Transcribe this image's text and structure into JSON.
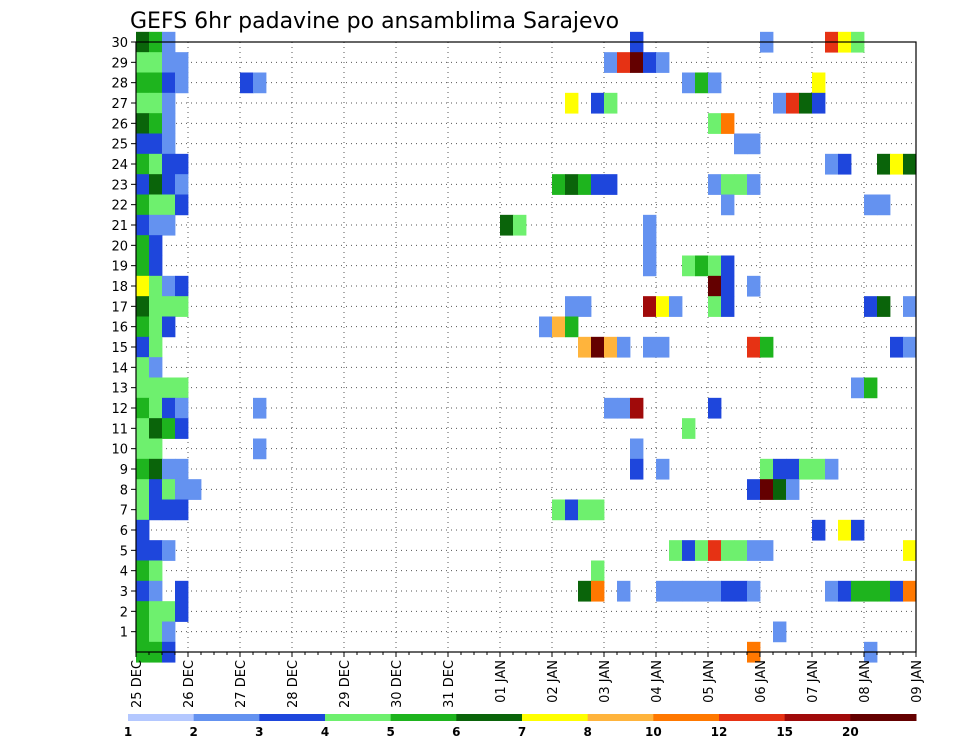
{
  "chart_data": {
    "type": "heatmap",
    "title": "GEFS 6hr padavine po ansamblima Sarajevo",
    "xlabel": "",
    "ylabel": "",
    "x_ticks": [
      "25 DEC",
      "26 DEC",
      "27 DEC",
      "28 DEC",
      "29 DEC",
      "30 DEC",
      "31 DEC",
      "01 JAN",
      "02 JAN",
      "03 JAN",
      "04 JAN",
      "05 JAN",
      "06 JAN",
      "07 JAN",
      "08 JAN",
      "09 JAN"
    ],
    "x_range": [
      0,
      60
    ],
    "x_unit": "6-hour steps from 25 DEC",
    "y_ticks": [
      1,
      2,
      3,
      4,
      5,
      6,
      7,
      8,
      9,
      10,
      11,
      12,
      13,
      14,
      15,
      16,
      17,
      18,
      19,
      20,
      21,
      22,
      23,
      24,
      25,
      26,
      27,
      28,
      29,
      30
    ],
    "y_range": [
      0,
      30
    ],
    "grid": true,
    "colorbar": {
      "ticks": [
        "1",
        "2",
        "3",
        "4",
        "5",
        "6",
        "7",
        "8",
        "10",
        "12",
        "15",
        "20"
      ],
      "colors": [
        "#b4c8ff",
        "#6492f0",
        "#1e46dc",
        "#6ef06e",
        "#1eb41e",
        "#0a640a",
        "#ffff00",
        "#ffb43c",
        "#ff7800",
        "#e63214",
        "#a00a0a",
        "#640000"
      ]
    },
    "cells": [
      [
        0,
        30,
        5
      ],
      [
        1,
        30,
        4
      ],
      [
        2,
        30,
        1
      ],
      [
        38,
        30,
        2
      ],
      [
        48,
        30,
        1
      ],
      [
        53,
        30,
        9
      ],
      [
        54,
        30,
        6
      ],
      [
        55,
        30,
        3
      ],
      [
        0,
        29,
        3
      ],
      [
        1,
        29,
        3
      ],
      [
        2,
        29,
        1
      ],
      [
        3,
        29,
        1
      ],
      [
        36,
        29,
        1
      ],
      [
        37,
        29,
        9
      ],
      [
        38,
        29,
        11
      ],
      [
        39,
        29,
        2
      ],
      [
        40,
        29,
        1
      ],
      [
        0,
        28,
        4
      ],
      [
        1,
        28,
        4
      ],
      [
        2,
        28,
        2
      ],
      [
        3,
        28,
        1
      ],
      [
        8,
        28,
        2
      ],
      [
        9,
        28,
        1
      ],
      [
        42,
        28,
        1
      ],
      [
        43,
        28,
        4
      ],
      [
        44,
        28,
        1
      ],
      [
        52,
        28,
        6
      ],
      [
        0,
        27,
        3
      ],
      [
        1,
        27,
        3
      ],
      [
        2,
        27,
        1
      ],
      [
        33,
        27,
        6
      ],
      [
        35,
        27,
        2
      ],
      [
        36,
        27,
        3
      ],
      [
        49,
        27,
        1
      ],
      [
        50,
        27,
        9
      ],
      [
        51,
        27,
        5
      ],
      [
        52,
        27,
        2
      ],
      [
        0,
        26,
        5
      ],
      [
        1,
        26,
        4
      ],
      [
        2,
        26,
        1
      ],
      [
        44,
        26,
        3
      ],
      [
        45,
        26,
        8
      ],
      [
        0,
        25,
        2
      ],
      [
        1,
        25,
        2
      ],
      [
        2,
        25,
        1
      ],
      [
        46,
        25,
        1
      ],
      [
        47,
        25,
        1
      ],
      [
        0,
        24,
        4
      ],
      [
        1,
        24,
        3
      ],
      [
        2,
        24,
        2
      ],
      [
        3,
        24,
        2
      ],
      [
        53,
        24,
        1
      ],
      [
        54,
        24,
        2
      ],
      [
        57,
        24,
        5
      ],
      [
        58,
        24,
        6
      ],
      [
        59,
        24,
        5
      ],
      [
        0,
        23,
        2
      ],
      [
        1,
        23,
        5
      ],
      [
        2,
        23,
        2
      ],
      [
        3,
        23,
        1
      ],
      [
        32,
        23,
        4
      ],
      [
        33,
        23,
        5
      ],
      [
        34,
        23,
        4
      ],
      [
        35,
        23,
        2
      ],
      [
        36,
        23,
        2
      ],
      [
        44,
        23,
        1
      ],
      [
        45,
        23,
        3
      ],
      [
        46,
        23,
        3
      ],
      [
        47,
        23,
        1
      ],
      [
        0,
        22,
        4
      ],
      [
        1,
        22,
        3
      ],
      [
        2,
        22,
        3
      ],
      [
        3,
        22,
        2
      ],
      [
        45,
        22,
        1
      ],
      [
        56,
        22,
        1
      ],
      [
        57,
        22,
        1
      ],
      [
        0,
        21,
        2
      ],
      [
        1,
        21,
        1
      ],
      [
        2,
        21,
        1
      ],
      [
        28,
        21,
        5
      ],
      [
        29,
        21,
        3
      ],
      [
        39,
        21,
        1
      ],
      [
        0,
        20,
        4
      ],
      [
        1,
        20,
        2
      ],
      [
        39,
        20,
        1
      ],
      [
        0,
        19,
        4
      ],
      [
        1,
        19,
        2
      ],
      [
        39,
        19,
        1
      ],
      [
        42,
        19,
        3
      ],
      [
        43,
        19,
        4
      ],
      [
        44,
        19,
        3
      ],
      [
        45,
        19,
        2
      ],
      [
        0,
        18,
        6
      ],
      [
        1,
        18,
        3
      ],
      [
        2,
        18,
        1
      ],
      [
        3,
        18,
        2
      ],
      [
        44,
        18,
        11
      ],
      [
        45,
        18,
        2
      ],
      [
        47,
        18,
        1
      ],
      [
        0,
        17,
        5
      ],
      [
        1,
        17,
        3
      ],
      [
        2,
        17,
        3
      ],
      [
        3,
        17,
        3
      ],
      [
        33,
        17,
        1
      ],
      [
        34,
        17,
        1
      ],
      [
        39,
        17,
        10
      ],
      [
        40,
        17,
        6
      ],
      [
        41,
        17,
        1
      ],
      [
        44,
        17,
        3
      ],
      [
        45,
        17,
        2
      ],
      [
        56,
        17,
        2
      ],
      [
        57,
        17,
        5
      ],
      [
        59,
        17,
        1
      ],
      [
        0,
        16,
        4
      ],
      [
        1,
        16,
        3
      ],
      [
        2,
        16,
        2
      ],
      [
        31,
        16,
        1
      ],
      [
        32,
        16,
        7
      ],
      [
        33,
        16,
        4
      ],
      [
        0,
        15,
        2
      ],
      [
        1,
        15,
        3
      ],
      [
        34,
        15,
        7
      ],
      [
        35,
        15,
        11
      ],
      [
        36,
        15,
        7
      ],
      [
        37,
        15,
        1
      ],
      [
        39,
        15,
        1
      ],
      [
        40,
        15,
        1
      ],
      [
        47,
        15,
        9
      ],
      [
        48,
        15,
        4
      ],
      [
        58,
        15,
        2
      ],
      [
        59,
        15,
        1
      ],
      [
        0,
        14,
        3
      ],
      [
        1,
        14,
        1
      ],
      [
        0,
        13,
        3
      ],
      [
        1,
        13,
        3
      ],
      [
        2,
        13,
        3
      ],
      [
        3,
        13,
        3
      ],
      [
        55,
        13,
        1
      ],
      [
        56,
        13,
        4
      ],
      [
        0,
        12,
        4
      ],
      [
        1,
        12,
        3
      ],
      [
        2,
        12,
        2
      ],
      [
        3,
        12,
        1
      ],
      [
        9,
        12,
        1
      ],
      [
        36,
        12,
        1
      ],
      [
        37,
        12,
        1
      ],
      [
        38,
        12,
        10
      ],
      [
        44,
        12,
        2
      ],
      [
        0,
        11,
        3
      ],
      [
        1,
        11,
        5
      ],
      [
        2,
        11,
        4
      ],
      [
        3,
        11,
        2
      ],
      [
        42,
        11,
        3
      ],
      [
        0,
        10,
        3
      ],
      [
        1,
        10,
        3
      ],
      [
        9,
        10,
        1
      ],
      [
        38,
        10,
        1
      ],
      [
        0,
        9,
        4
      ],
      [
        1,
        9,
        5
      ],
      [
        2,
        9,
        1
      ],
      [
        3,
        9,
        1
      ],
      [
        38,
        9,
        2
      ],
      [
        40,
        9,
        1
      ],
      [
        48,
        9,
        3
      ],
      [
        49,
        9,
        2
      ],
      [
        50,
        9,
        2
      ],
      [
        51,
        9,
        3
      ],
      [
        52,
        9,
        3
      ],
      [
        53,
        9,
        1
      ],
      [
        0,
        8,
        3
      ],
      [
        1,
        8,
        2
      ],
      [
        2,
        8,
        3
      ],
      [
        3,
        8,
        1
      ],
      [
        4,
        8,
        1
      ],
      [
        47,
        8,
        2
      ],
      [
        48,
        8,
        11
      ],
      [
        49,
        8,
        5
      ],
      [
        50,
        8,
        1
      ],
      [
        0,
        7,
        3
      ],
      [
        1,
        7,
        2
      ],
      [
        2,
        7,
        2
      ],
      [
        3,
        7,
        2
      ],
      [
        32,
        7,
        3
      ],
      [
        33,
        7,
        2
      ],
      [
        34,
        7,
        3
      ],
      [
        35,
        7,
        3
      ],
      [
        0,
        6,
        2
      ],
      [
        52,
        6,
        2
      ],
      [
        54,
        6,
        6
      ],
      [
        55,
        6,
        2
      ],
      [
        0,
        5,
        2
      ],
      [
        1,
        5,
        2
      ],
      [
        2,
        5,
        1
      ],
      [
        41,
        5,
        3
      ],
      [
        42,
        5,
        2
      ],
      [
        43,
        5,
        3
      ],
      [
        44,
        5,
        9
      ],
      [
        45,
        5,
        3
      ],
      [
        46,
        5,
        3
      ],
      [
        47,
        5,
        1
      ],
      [
        48,
        5,
        1
      ],
      [
        59,
        5,
        6
      ],
      [
        0,
        4,
        4
      ],
      [
        1,
        4,
        3
      ],
      [
        35,
        4,
        3
      ],
      [
        0,
        3,
        2
      ],
      [
        1,
        3,
        1
      ],
      [
        3,
        3,
        2
      ],
      [
        34,
        3,
        5
      ],
      [
        35,
        3,
        8
      ],
      [
        37,
        3,
        1
      ],
      [
        40,
        3,
        1
      ],
      [
        41,
        3,
        1
      ],
      [
        42,
        3,
        1
      ],
      [
        43,
        3,
        1
      ],
      [
        44,
        3,
        1
      ],
      [
        45,
        3,
        2
      ],
      [
        46,
        3,
        2
      ],
      [
        47,
        3,
        1
      ],
      [
        53,
        3,
        1
      ],
      [
        54,
        3,
        2
      ],
      [
        55,
        3,
        4
      ],
      [
        56,
        3,
        4
      ],
      [
        57,
        3,
        4
      ],
      [
        58,
        3,
        2
      ],
      [
        59,
        3,
        8
      ],
      [
        0,
        2,
        4
      ],
      [
        1,
        2,
        3
      ],
      [
        2,
        2,
        3
      ],
      [
        3,
        2,
        2
      ],
      [
        0,
        1,
        4
      ],
      [
        1,
        1,
        3
      ],
      [
        2,
        1,
        1
      ],
      [
        49,
        1,
        1
      ],
      [
        0,
        0,
        4
      ],
      [
        1,
        0,
        4
      ],
      [
        2,
        0,
        2
      ],
      [
        47,
        0,
        8
      ],
      [
        56,
        0,
        1
      ]
    ]
  }
}
